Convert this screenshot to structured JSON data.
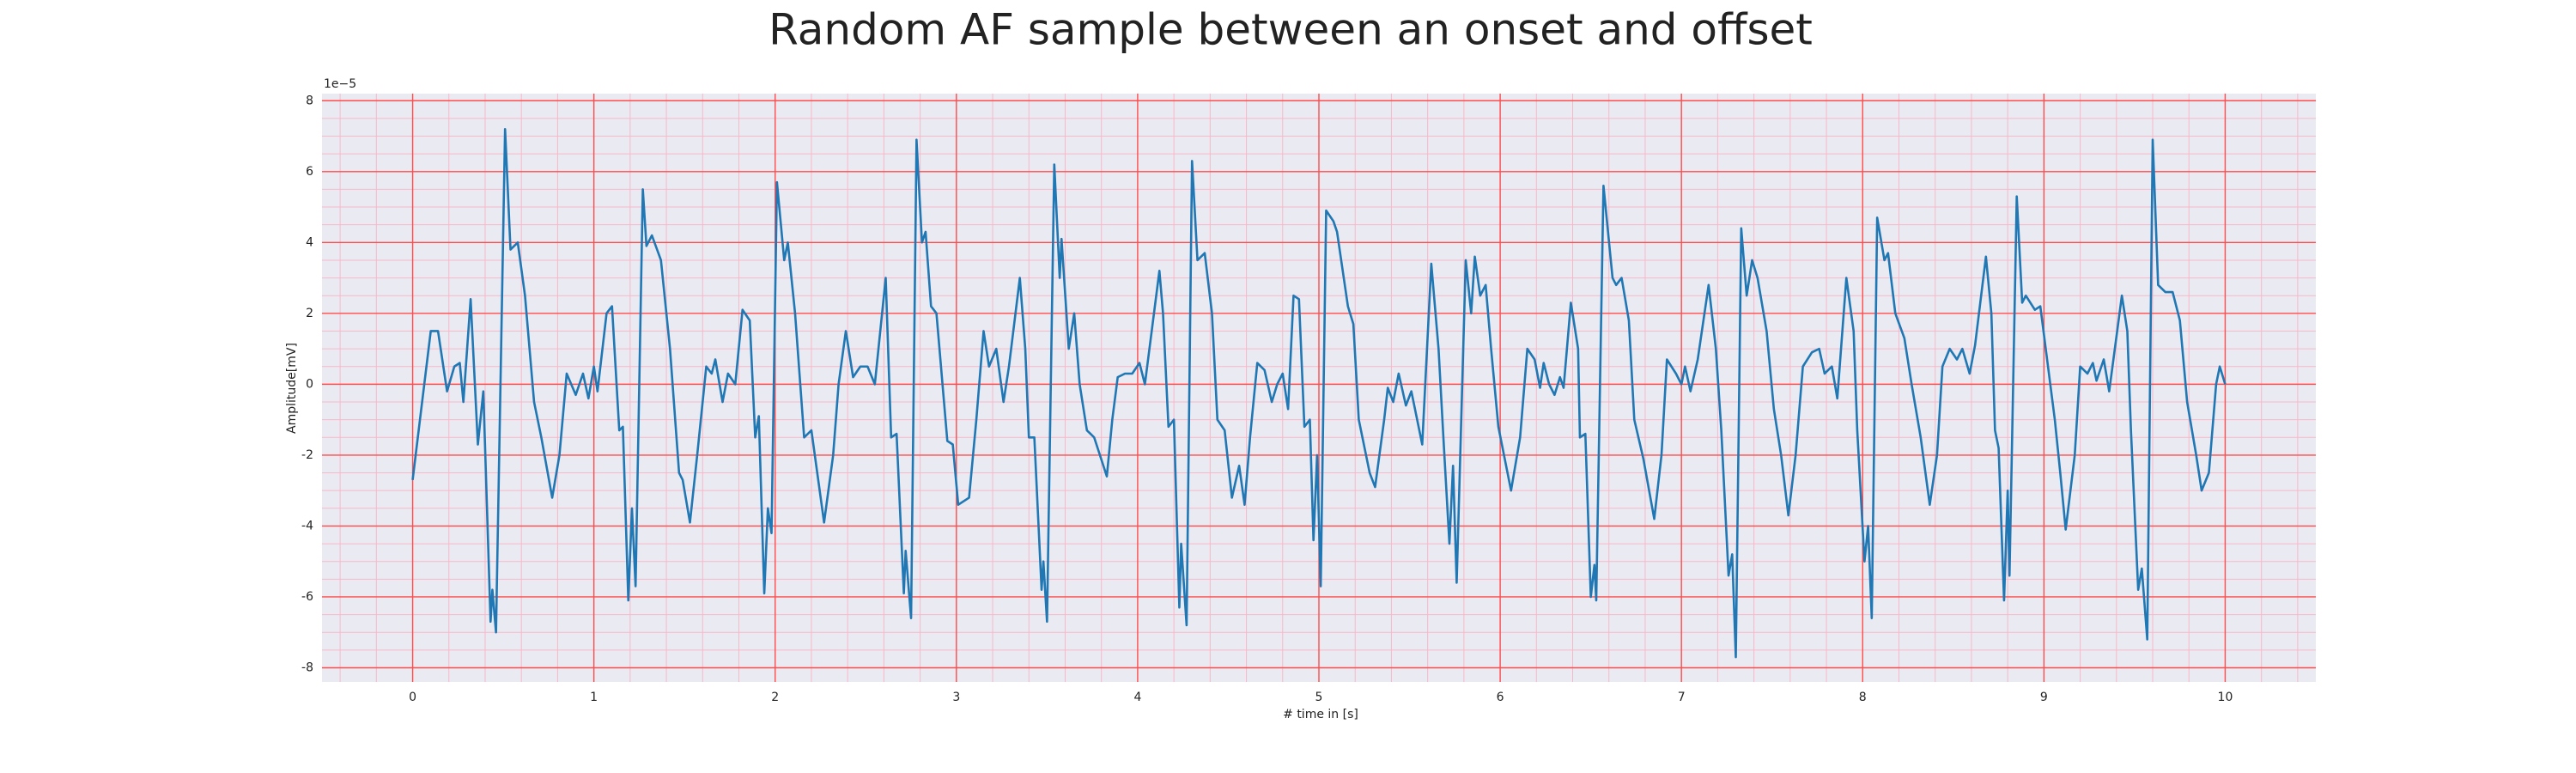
{
  "chart_data": {
    "type": "line",
    "title": "Random AF sample between an onset and offset",
    "xlabel": "# time in [s]",
    "ylabel": "Amplitude[mV]",
    "offset_label": "1e−5",
    "color": "#1f77b4",
    "grid": true,
    "major_grid_color": "#ff4d4d",
    "minor_grid_color": "#f7b8c8",
    "xminor_step": 0.2,
    "yminor_step": 0.5,
    "xlim": [
      -0.5,
      10.5
    ],
    "ylim": [
      -8.4,
      8.2
    ],
    "xticks": [
      0,
      1,
      2,
      3,
      4,
      5,
      6,
      7,
      8,
      9,
      10
    ],
    "yticks": [
      -8,
      -6,
      -4,
      -2,
      0,
      2,
      4,
      6,
      8
    ],
    "x": [
      0.0,
      0.1,
      0.14,
      0.19,
      0.23,
      0.26,
      0.28,
      0.32,
      0.36,
      0.39,
      0.43,
      0.44,
      0.46,
      0.51,
      0.54,
      0.58,
      0.62,
      0.67,
      0.71,
      0.77,
      0.81,
      0.85,
      0.9,
      0.94,
      0.97,
      1.0,
      1.02,
      1.07,
      1.1,
      1.14,
      1.16,
      1.19,
      1.21,
      1.23,
      1.27,
      1.29,
      1.32,
      1.37,
      1.42,
      1.47,
      1.49,
      1.53,
      1.57,
      1.62,
      1.65,
      1.67,
      1.71,
      1.74,
      1.78,
      1.82,
      1.86,
      1.89,
      1.91,
      1.94,
      1.96,
      1.98,
      2.01,
      2.05,
      2.07,
      2.11,
      2.16,
      2.2,
      2.27,
      2.32,
      2.35,
      2.39,
      2.43,
      2.47,
      2.51,
      2.55,
      2.59,
      2.61,
      2.64,
      2.67,
      2.71,
      2.72,
      2.75,
      2.78,
      2.81,
      2.83,
      2.86,
      2.89,
      2.95,
      2.98,
      3.01,
      3.07,
      3.11,
      3.15,
      3.18,
      3.22,
      3.26,
      3.29,
      3.35,
      3.38,
      3.4,
      3.43,
      3.47,
      3.48,
      3.5,
      3.54,
      3.57,
      3.58,
      3.62,
      3.65,
      3.68,
      3.72,
      3.76,
      3.83,
      3.86,
      3.89,
      3.93,
      3.97,
      4.01,
      4.04,
      4.12,
      4.14,
      4.17,
      4.2,
      4.23,
      4.24,
      4.27,
      4.3,
      4.33,
      4.37,
      4.41,
      4.44,
      4.48,
      4.52,
      4.56,
      4.59,
      4.62,
      4.66,
      4.7,
      4.74,
      4.77,
      4.8,
      4.83,
      4.86,
      4.89,
      4.92,
      4.95,
      4.97,
      4.99,
      5.01,
      5.04,
      5.08,
      5.1,
      5.16,
      5.19,
      5.22,
      5.28,
      5.31,
      5.36,
      5.38,
      5.41,
      5.44,
      5.48,
      5.51,
      5.57,
      5.62,
      5.66,
      5.69,
      5.72,
      5.74,
      5.76,
      5.81,
      5.84,
      5.86,
      5.89,
      5.92,
      5.95,
      5.99,
      6.06,
      6.11,
      6.15,
      6.19,
      6.22,
      6.24,
      6.27,
      6.3,
      6.33,
      6.35,
      6.39,
      6.43,
      6.44,
      6.47,
      6.5,
      6.52,
      6.53,
      6.57,
      6.62,
      6.64,
      6.67,
      6.71,
      6.74,
      6.79,
      6.85,
      6.89,
      6.92,
      6.97,
      7.0,
      7.02,
      7.05,
      7.09,
      7.15,
      7.19,
      7.22,
      7.26,
      7.28,
      7.3,
      7.33,
      7.36,
      7.39,
      7.42,
      7.47,
      7.51,
      7.55,
      7.59,
      7.63,
      7.67,
      7.72,
      7.76,
      7.79,
      7.83,
      7.86,
      7.91,
      7.95,
      7.97,
      8.01,
      8.03,
      8.05,
      8.08,
      8.12,
      8.14,
      8.18,
      8.23,
      8.27,
      8.32,
      8.37,
      8.41,
      8.44,
      8.48,
      8.52,
      8.55,
      8.59,
      8.62,
      8.68,
      8.71,
      8.73,
      8.75,
      8.78,
      8.8,
      8.81,
      8.85,
      8.88,
      8.9,
      8.95,
      8.98,
      9.01,
      9.06,
      9.09,
      9.12,
      9.17,
      9.2,
      9.24,
      9.27,
      9.29,
      9.33,
      9.36,
      9.43,
      9.46,
      9.48,
      9.52,
      9.54,
      9.57,
      9.6,
      9.63,
      9.67,
      9.71,
      9.75,
      9.79,
      9.84,
      9.87,
      9.91,
      9.95,
      9.97,
      10.0
    ],
    "values": [
      -2.7,
      1.5,
      1.5,
      -0.2,
      0.5,
      0.6,
      -0.5,
      2.4,
      -1.7,
      -0.2,
      -6.7,
      -5.8,
      -7.0,
      7.2,
      3.8,
      4.0,
      2.5,
      -0.5,
      -1.5,
      -3.2,
      -2.0,
      0.3,
      -0.3,
      0.3,
      -0.4,
      0.5,
      -0.2,
      2.0,
      2.2,
      -1.3,
      -1.2,
      -6.1,
      -3.5,
      -5.7,
      5.5,
      3.9,
      4.2,
      3.5,
      1.0,
      -2.5,
      -2.7,
      -3.9,
      -2.0,
      0.5,
      0.3,
      0.7,
      -0.5,
      0.3,
      0.0,
      2.1,
      1.8,
      -1.5,
      -0.9,
      -5.9,
      -3.5,
      -4.2,
      5.7,
      3.5,
      4.0,
      2.0,
      -1.5,
      -1.3,
      -3.9,
      -2.0,
      0.0,
      1.5,
      0.2,
      0.5,
      0.5,
      0.0,
      2.0,
      3.0,
      -1.5,
      -1.4,
      -5.9,
      -4.7,
      -6.6,
      6.9,
      4.0,
      4.3,
      2.2,
      2.0,
      -1.6,
      -1.7,
      -3.4,
      -3.2,
      -1.0,
      1.5,
      0.5,
      1.0,
      -0.5,
      0.5,
      3.0,
      1.0,
      -1.5,
      -1.5,
      -5.8,
      -5.0,
      -6.7,
      6.2,
      3.0,
      4.1,
      1.0,
      2.0,
      0.0,
      -1.3,
      -1.5,
      -2.6,
      -1.0,
      0.2,
      0.3,
      0.3,
      0.6,
      0.0,
      3.2,
      2.0,
      -1.2,
      -1.0,
      -6.3,
      -4.5,
      -6.8,
      6.3,
      3.5,
      3.7,
      2.0,
      -1.0,
      -1.3,
      -3.2,
      -2.3,
      -3.4,
      -1.5,
      0.6,
      0.4,
      -0.5,
      0.0,
      0.3,
      -0.7,
      2.5,
      2.4,
      -1.2,
      -1.0,
      -4.4,
      -2.0,
      -5.7,
      4.9,
      4.6,
      4.3,
      2.2,
      1.7,
      -1.0,
      -2.5,
      -2.9,
      -1.0,
      -0.1,
      -0.5,
      0.3,
      -0.6,
      -0.2,
      -1.7,
      3.4,
      1.0,
      -1.8,
      -4.5,
      -2.3,
      -5.6,
      3.5,
      2.0,
      3.6,
      2.5,
      2.8,
      1.0,
      -1.2,
      -3.0,
      -1.5,
      1.0,
      0.7,
      -0.1,
      0.6,
      0.0,
      -0.3,
      0.2,
      -0.1,
      2.3,
      1.0,
      -1.5,
      -1.4,
      -6.0,
      -5.1,
      -6.1,
      5.6,
      3.0,
      2.8,
      3.0,
      1.8,
      -1.0,
      -2.1,
      -3.8,
      -2.0,
      0.7,
      0.3,
      0.0,
      0.5,
      -0.2,
      0.7,
      2.8,
      1.0,
      -1.3,
      -5.4,
      -4.8,
      -7.7,
      4.4,
      2.5,
      3.5,
      3.0,
      1.5,
      -0.7,
      -2.0,
      -3.7,
      -2.0,
      0.5,
      0.9,
      1.0,
      0.3,
      0.5,
      -0.4,
      3.0,
      1.5,
      -1.3,
      -5.0,
      -4.0,
      -6.6,
      4.7,
      3.5,
      3.7,
      2.0,
      1.3,
      0.0,
      -1.5,
      -3.4,
      -2.0,
      0.5,
      1.0,
      0.7,
      1.0,
      0.3,
      1.1,
      3.6,
      2.0,
      -1.3,
      -1.8,
      -6.1,
      -3.0,
      -5.4,
      5.3,
      2.3,
      2.5,
      2.1,
      2.2,
      1.0,
      -1.0,
      -2.5,
      -4.1,
      -2.0,
      0.5,
      0.3,
      0.6,
      0.1,
      0.7,
      -0.2,
      2.5,
      1.5,
      -1.3,
      -5.8,
      -5.2,
      -7.2,
      6.9,
      2.8,
      2.6,
      2.6,
      1.8,
      -0.5,
      -2.0,
      -3.0,
      -2.5,
      0.0,
      0.5,
      0.0
    ]
  }
}
